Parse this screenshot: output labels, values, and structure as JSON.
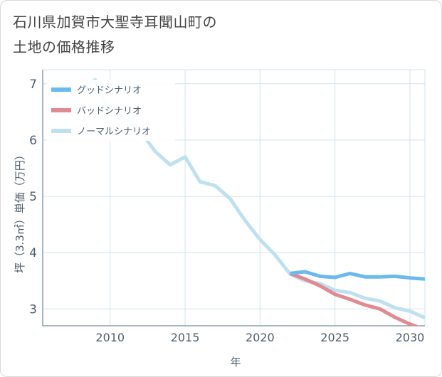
{
  "chart_data": {
    "type": "line",
    "title_lines": [
      "石川県加賀市大聖寺耳聞山町の",
      "土地の価格推移"
    ],
    "xlabel": "年",
    "ylabel": "坪（3.3㎡）単価（万円）",
    "xlim": [
      2005.5,
      2031
    ],
    "ylim": [
      2.7,
      7.25
    ],
    "x_ticks": [
      2010,
      2015,
      2020,
      2025,
      2030
    ],
    "y_ticks": [
      3,
      4,
      5,
      6,
      7
    ],
    "grid": true,
    "legend_position": "top-left",
    "series": [
      {
        "name": "グッドシナリオ",
        "color": "#6cb9ec",
        "x": [
          2022,
          2023,
          2024,
          2025,
          2026,
          2027,
          2028,
          2029,
          2030,
          2031
        ],
        "y": [
          3.63,
          3.66,
          3.58,
          3.56,
          3.63,
          3.57,
          3.57,
          3.58,
          3.55,
          3.53
        ]
      },
      {
        "name": "バッドシナリオ",
        "color": "#e08a91",
        "x": [
          2022,
          2023,
          2024,
          2025,
          2026,
          2027,
          2028,
          2029,
          2030,
          2031
        ],
        "y": [
          3.63,
          3.53,
          3.41,
          3.26,
          3.17,
          3.07,
          3.0,
          2.85,
          2.73,
          2.63
        ]
      },
      {
        "name": "ノーマルシナリオ",
        "color": "#bfe0ee",
        "x": [
          2008,
          2009,
          2010,
          2011,
          2012,
          2013,
          2014,
          2015,
          2016,
          2017,
          2018,
          2019,
          2020,
          2021,
          2022,
          2023,
          2024,
          2025,
          2026,
          2027,
          2028,
          2029,
          2030,
          2031
        ],
        "y": [
          6.9,
          7.07,
          6.45,
          6.43,
          6.16,
          5.8,
          5.56,
          5.7,
          5.26,
          5.19,
          4.96,
          4.57,
          4.23,
          3.96,
          3.62,
          3.5,
          3.45,
          3.33,
          3.29,
          3.19,
          3.14,
          3.02,
          2.96,
          2.84
        ]
      }
    ]
  },
  "colors": {
    "grid": "#d3e2ec",
    "axis": "#5a6e7e",
    "tick_label": "#4d5e6c",
    "title": "#444444"
  }
}
